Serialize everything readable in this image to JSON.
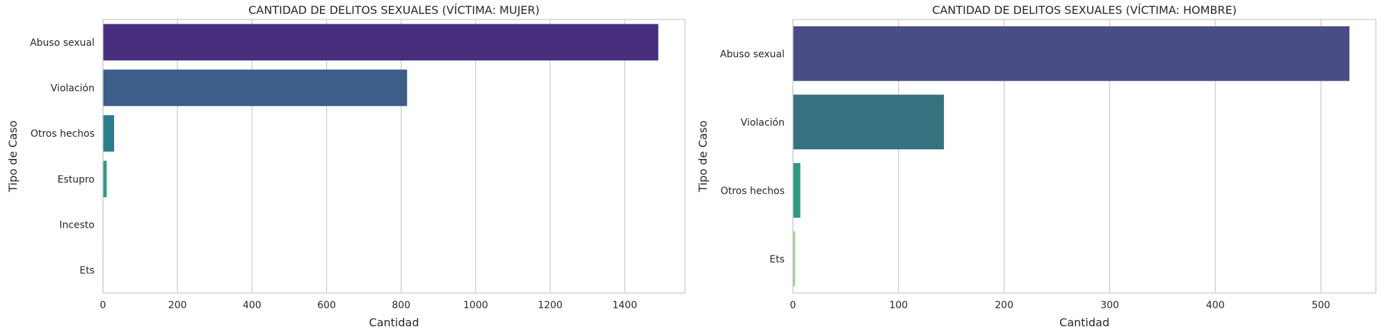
{
  "chart_data": [
    {
      "type": "bar",
      "orientation": "horizontal",
      "title": "CANTIDAD DE DELITOS SEXUALES (VÍCTIMA: MUJER)",
      "xlabel": "Cantidad",
      "ylabel": "Tipo de Caso",
      "categories": [
        "Abuso sexual",
        "Violación",
        "Otros hechos",
        "Estupro",
        "Incesto",
        "Ets"
      ],
      "values": [
        1490,
        816,
        30,
        10,
        1,
        1
      ],
      "colors": [
        "#472f7d",
        "#3d5d8a",
        "#2c7d8a",
        "#2b9a80",
        "#55c06a",
        "#a8d76f"
      ],
      "xlim": [
        0,
        1562
      ],
      "xticks": [
        0,
        200,
        400,
        600,
        800,
        1000,
        1200,
        1400
      ],
      "grid": "x"
    },
    {
      "type": "bar",
      "orientation": "horizontal",
      "title": "CANTIDAD DE DELITOS SEXUALES (VÍCTIMA: HOMBRE)",
      "xlabel": "Cantidad",
      "ylabel": "Tipo de Caso",
      "categories": [
        "Abuso sexual",
        "Violación",
        "Otros hechos",
        "Ets"
      ],
      "values": [
        527,
        143,
        7,
        2
      ],
      "colors": [
        "#484e85",
        "#377281",
        "#2a9b82",
        "#94d48a"
      ],
      "xlim": [
        0,
        552
      ],
      "xticks": [
        0,
        100,
        200,
        300,
        400,
        500
      ],
      "grid": "x"
    }
  ]
}
